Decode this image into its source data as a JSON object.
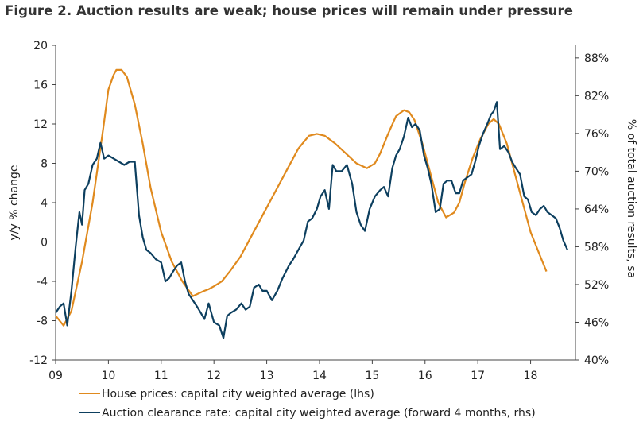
{
  "title": "Figure 2. Auction results are weak; house prices will remain under pressure",
  "colors": {
    "house": "#E08A1E",
    "auction": "#0D3F5F",
    "axis": "#444444"
  },
  "chart_data": {
    "type": "line",
    "ylabel_left": "y/y % change",
    "ylabel_right": "% of total auction results, sa",
    "ylim_left": [
      -12,
      20
    ],
    "yticks_left": [
      "20",
      "16",
      "12",
      "8",
      "4",
      "0",
      "-4",
      "-8",
      "-12"
    ],
    "ylim_right": [
      40,
      90
    ],
    "yticks_right": [
      "88%",
      "82%",
      "76%",
      "70%",
      "64%",
      "58%",
      "52%",
      "46%",
      "40%"
    ],
    "xticks": [
      "09",
      "10",
      "11",
      "12",
      "13",
      "14",
      "15",
      "16",
      "17",
      "18"
    ],
    "grid": false,
    "legend_position": "bottom",
    "series": [
      {
        "name": "House prices: capital city weighted average (lhs)",
        "axis": "left",
        "x": [
          9.0,
          9.15,
          9.3,
          9.5,
          9.7,
          9.9,
          10.0,
          10.1,
          10.15,
          10.25,
          10.35,
          10.5,
          10.65,
          10.8,
          11.0,
          11.2,
          11.4,
          11.6,
          11.8,
          11.9,
          12.0,
          12.15,
          12.3,
          12.5,
          12.7,
          12.85,
          13.0,
          13.2,
          13.4,
          13.6,
          13.8,
          13.95,
          14.1,
          14.3,
          14.5,
          14.7,
          14.9,
          15.05,
          15.15,
          15.3,
          15.45,
          15.6,
          15.7,
          15.8,
          15.95,
          16.1,
          16.25,
          16.4,
          16.55,
          16.65,
          16.75,
          16.9,
          17.05,
          17.2,
          17.3,
          17.4,
          17.55,
          17.7,
          17.85,
          18.0,
          18.15,
          18.3
        ],
        "values": [
          -7.5,
          -8.5,
          -7.0,
          -2.0,
          4.0,
          11.5,
          15.5,
          17.0,
          17.5,
          17.5,
          16.8,
          14.0,
          10.0,
          5.5,
          1.0,
          -2.0,
          -4.0,
          -5.5,
          -5.0,
          -4.8,
          -4.5,
          -4.0,
          -3.0,
          -1.5,
          0.5,
          2.0,
          3.5,
          5.5,
          7.5,
          9.5,
          10.8,
          11.0,
          10.8,
          10.0,
          9.0,
          8.0,
          7.5,
          8.0,
          9.0,
          11.0,
          12.8,
          13.4,
          13.2,
          12.4,
          10.0,
          7.0,
          4.0,
          2.5,
          3.0,
          4.0,
          6.0,
          8.5,
          10.5,
          12.0,
          12.5,
          12.0,
          10.0,
          7.0,
          4.0,
          1.0,
          -1.0,
          -3.0
        ]
      },
      {
        "name": "Auction clearance rate: capital city weighted average (forward 4 months, rhs)",
        "axis": "right",
        "x": [
          9.0,
          9.08,
          9.15,
          9.22,
          9.3,
          9.38,
          9.45,
          9.5,
          9.55,
          9.62,
          9.7,
          9.78,
          9.85,
          9.92,
          10.0,
          10.1,
          10.2,
          10.3,
          10.4,
          10.5,
          10.58,
          10.65,
          10.72,
          10.8,
          10.9,
          11.0,
          11.08,
          11.15,
          11.22,
          11.3,
          11.38,
          11.45,
          11.52,
          11.6,
          11.68,
          11.75,
          11.82,
          11.9,
          12.0,
          12.1,
          12.18,
          12.25,
          12.32,
          12.42,
          12.52,
          12.6,
          12.68,
          12.76,
          12.85,
          12.92,
          13.0,
          13.1,
          13.2,
          13.3,
          13.42,
          13.5,
          13.6,
          13.7,
          13.78,
          13.86,
          13.95,
          14.02,
          14.1,
          14.18,
          14.25,
          14.32,
          14.42,
          14.52,
          14.62,
          14.7,
          14.78,
          14.86,
          14.95,
          15.05,
          15.15,
          15.22,
          15.3,
          15.38,
          15.45,
          15.52,
          15.6,
          15.68,
          15.75,
          15.82,
          15.9,
          15.98,
          16.05,
          16.12,
          16.2,
          16.28,
          16.35,
          16.42,
          16.5,
          16.58,
          16.65,
          16.72,
          16.8,
          16.88,
          16.95,
          17.02,
          17.1,
          17.18,
          17.25,
          17.3,
          17.36,
          17.42,
          17.5,
          17.58,
          17.65,
          17.72,
          17.8,
          17.88,
          17.95,
          18.02,
          18.1,
          18.18,
          18.25,
          18.32,
          18.4,
          18.48,
          18.55,
          18.62,
          18.7
        ],
        "values": [
          47.5,
          48.5,
          49.0,
          45.5,
          51.0,
          58.0,
          63.5,
          61.5,
          67.0,
          68.0,
          71.0,
          72.0,
          74.5,
          72.0,
          72.5,
          72.0,
          71.5,
          71.0,
          71.5,
          71.5,
          63.0,
          59.5,
          57.5,
          57.0,
          56.0,
          55.5,
          52.5,
          53.0,
          54.0,
          55.0,
          55.5,
          52.5,
          50.5,
          49.5,
          48.5,
          47.5,
          46.5,
          49.0,
          46.0,
          45.5,
          43.5,
          47.0,
          47.5,
          48.0,
          49.0,
          48.0,
          48.5,
          51.5,
          52.0,
          51.0,
          51.0,
          49.5,
          51.0,
          53.0,
          55.0,
          56.0,
          57.5,
          59.0,
          62.0,
          62.5,
          64.0,
          66.0,
          67.0,
          64.0,
          71.0,
          70.0,
          70.0,
          71.0,
          68.0,
          63.5,
          61.5,
          60.5,
          64.0,
          66.0,
          67.0,
          67.5,
          66.0,
          70.5,
          72.5,
          73.5,
          75.5,
          78.5,
          77.0,
          77.5,
          76.5,
          72.5,
          70.5,
          68.0,
          63.5,
          64.0,
          68.0,
          68.5,
          68.5,
          66.5,
          66.5,
          68.5,
          69.0,
          69.5,
          71.5,
          74.0,
          76.0,
          77.5,
          79.0,
          79.5,
          81.0,
          73.5,
          74.0,
          73.0,
          71.5,
          70.5,
          69.5,
          66.0,
          65.5,
          63.5,
          63.0,
          64.0,
          64.5,
          63.5,
          63.0,
          62.5,
          61.0,
          59.0,
          57.5
        ]
      }
    ]
  },
  "ids": {
    "legend_house": "House prices: capital city weighted average (lhs)",
    "legend_auction": "Auction clearance rate: capital city weighted average (forward 4 months, rhs)"
  }
}
